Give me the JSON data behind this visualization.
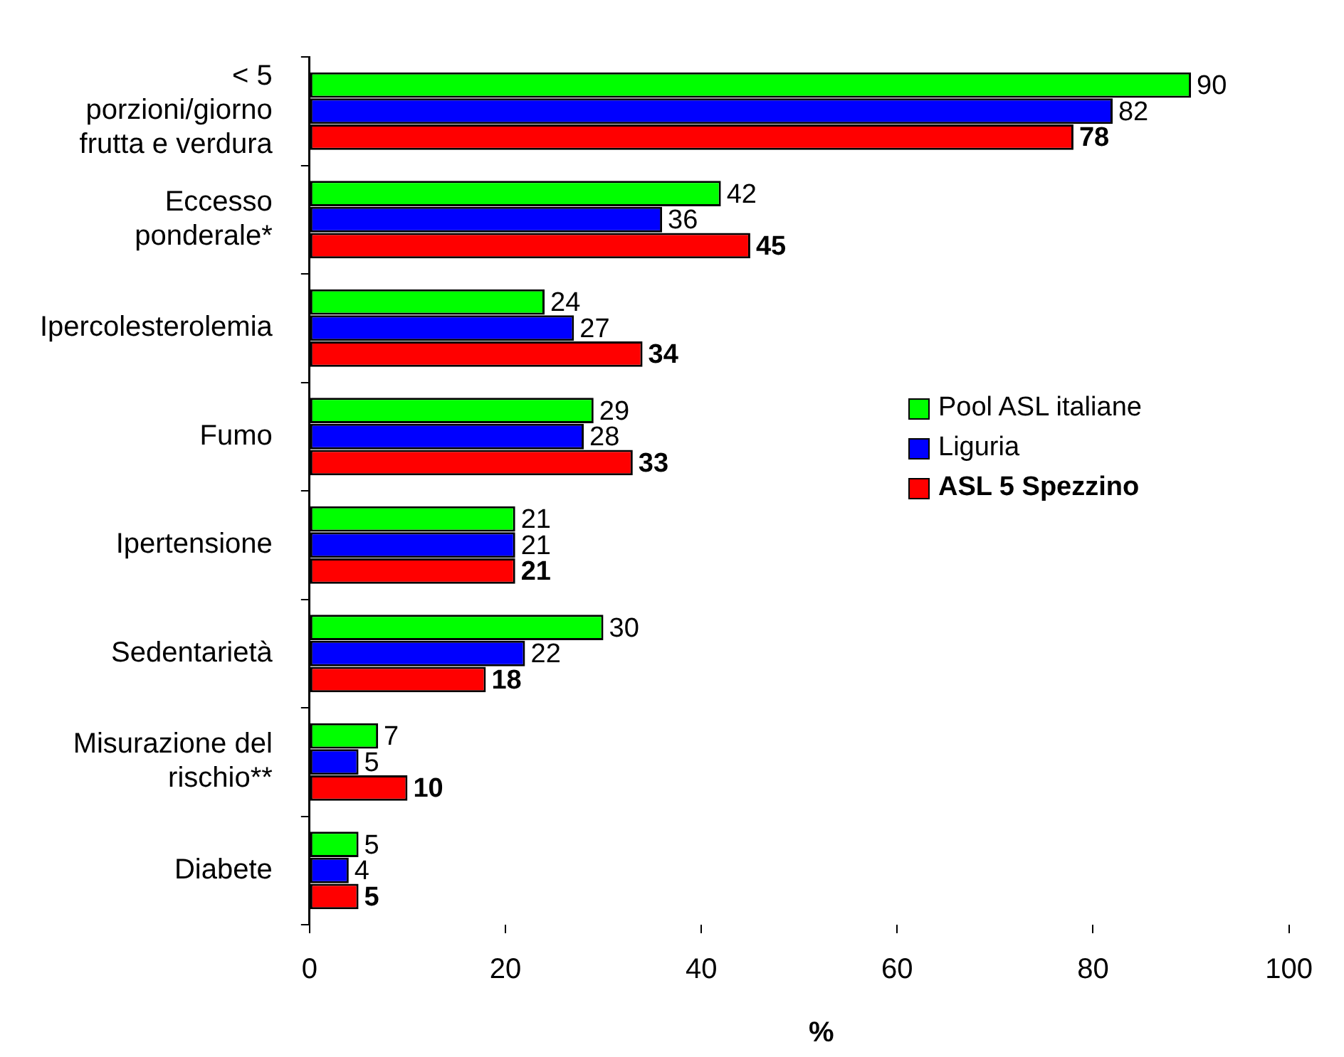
{
  "chart_data": {
    "type": "bar",
    "orientation": "horizontal",
    "xlabel": "%",
    "categories": [
      "< 5\nporzioni/giorno\nfrutta e verdura",
      "Eccesso\nponderale*",
      "Ipercolesterolemia",
      "Fumo",
      "Ipertensione",
      "Sedentarietà",
      "Misurazione del\nrischio**",
      "Diabete"
    ],
    "series": [
      {
        "name": "Pool ASL italiane",
        "color": "#00ff00",
        "values": [
          90,
          42,
          24,
          29,
          21,
          30,
          7,
          5
        ]
      },
      {
        "name": "Liguria",
        "color": "#0000ff",
        "values": [
          82,
          36,
          27,
          28,
          21,
          22,
          5,
          4
        ]
      },
      {
        "name": "ASL 5 Spezzino",
        "color": "#ff0000",
        "values": [
          78,
          45,
          34,
          33,
          21,
          18,
          10,
          5
        ]
      }
    ],
    "xlim": [
      0,
      100
    ],
    "xticks": [
      0,
      20,
      40,
      60,
      80,
      100
    ],
    "grid": false,
    "legend": "right",
    "data_labels": true
  }
}
